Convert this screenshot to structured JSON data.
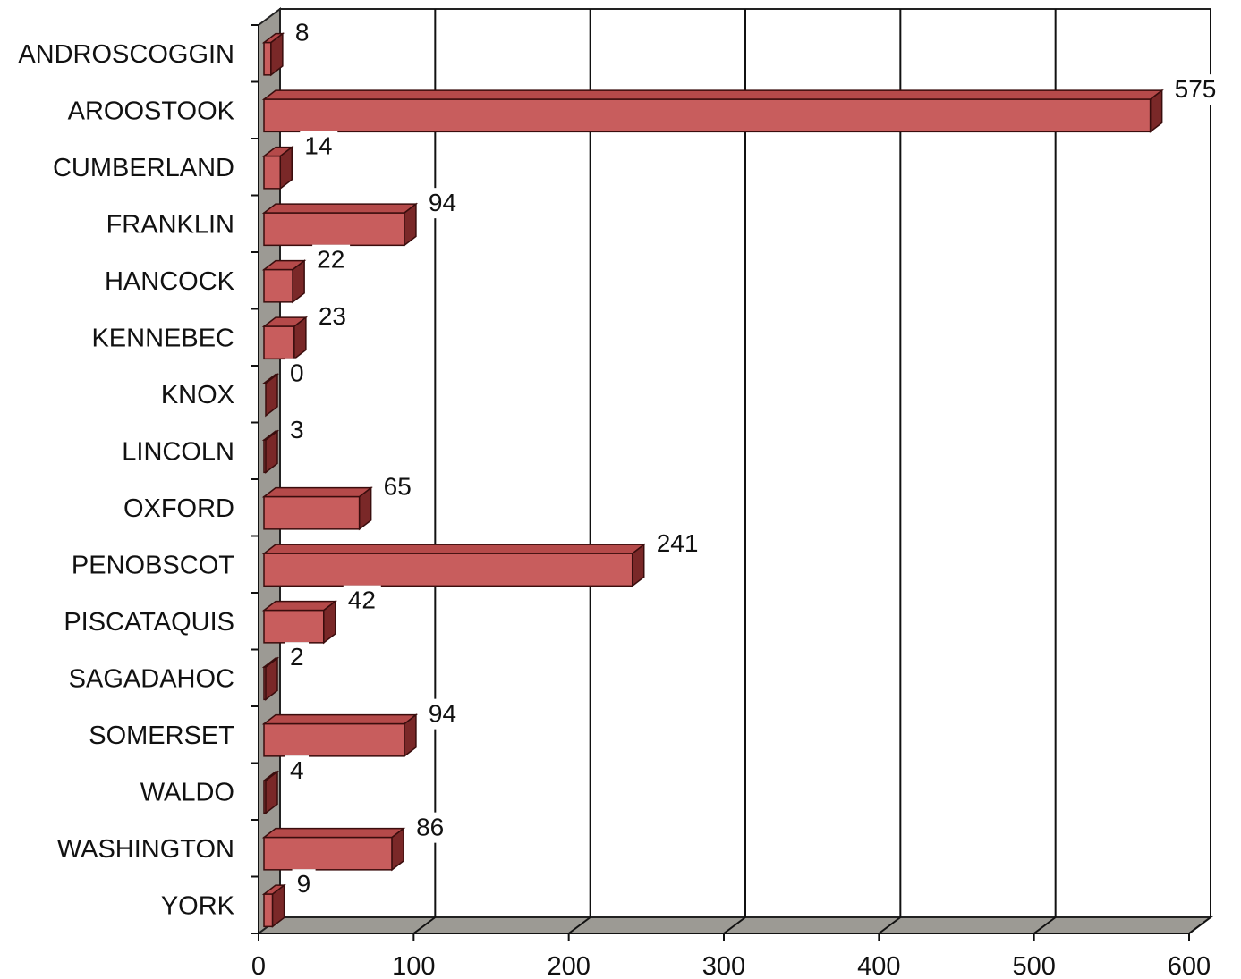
{
  "chart_data": {
    "type": "bar",
    "orientation": "horizontal",
    "style": "3d",
    "categories": [
      "ANDROSCOGGIN",
      "AROOSTOOK",
      "CUMBERLAND",
      "FRANKLIN",
      "HANCOCK",
      "KENNEBEC",
      "KNOX",
      "LINCOLN",
      "OXFORD",
      "PENOBSCOT",
      "PISCATAQUIS",
      "SAGADAHOC",
      "SOMERSET",
      "WALDO",
      "WASHINGTON",
      "YORK"
    ],
    "values": [
      8,
      575,
      14,
      94,
      22,
      23,
      0,
      3,
      65,
      241,
      42,
      2,
      94,
      4,
      86,
      9
    ],
    "title": "",
    "xlabel": "",
    "ylabel": "",
    "xlim": [
      0,
      600
    ],
    "xticks": [
      0,
      100,
      200,
      300,
      400,
      500,
      600
    ],
    "grid": "vertical",
    "legend": "none",
    "colors": {
      "bar_front": "#c85d5d",
      "bar_top": "#b54a4a",
      "bar_side": "#7a2828",
      "bar_edge": "#3a0d0d",
      "floor": "#9c9a94",
      "wall": "#ffffff"
    }
  }
}
